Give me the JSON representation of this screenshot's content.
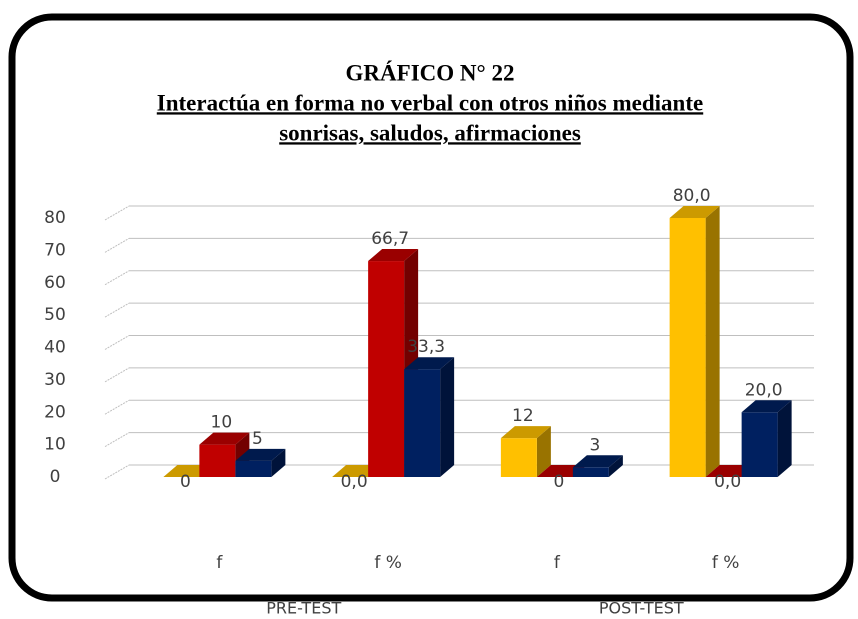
{
  "chart_data": {
    "type": "bar3d",
    "title": "GRÁFICO N° 22",
    "subtitle": [
      "Interactúa en forma no verbal con otros niños mediante",
      "sonrisas, saludos, afirmaciones"
    ],
    "categories": [
      "f",
      "f %",
      "f",
      "f %"
    ],
    "groups": [
      {
        "label": "PRE-TEST",
        "span": 2
      },
      {
        "label": "POST-TEST",
        "span": 2
      }
    ],
    "series": [
      {
        "color": "#ffc000",
        "values": [
          0,
          0.0,
          12,
          80.0
        ],
        "value_labels": [
          "0",
          "0,0",
          "12",
          "80,0"
        ]
      },
      {
        "color": "#c00000",
        "values": [
          10,
          66.7,
          0,
          0.0
        ],
        "value_labels": [
          "10",
          "66,7",
          "0",
          "0,0"
        ]
      },
      {
        "color": "#002060",
        "values": [
          5,
          33.3,
          3,
          20.0
        ],
        "value_labels": [
          "5",
          "33,3",
          "3",
          "20,0"
        ]
      }
    ],
    "ylim": [
      0,
      80
    ],
    "yticks": [
      0,
      10,
      20,
      30,
      40,
      50,
      60,
      70,
      80
    ],
    "grid": true
  }
}
